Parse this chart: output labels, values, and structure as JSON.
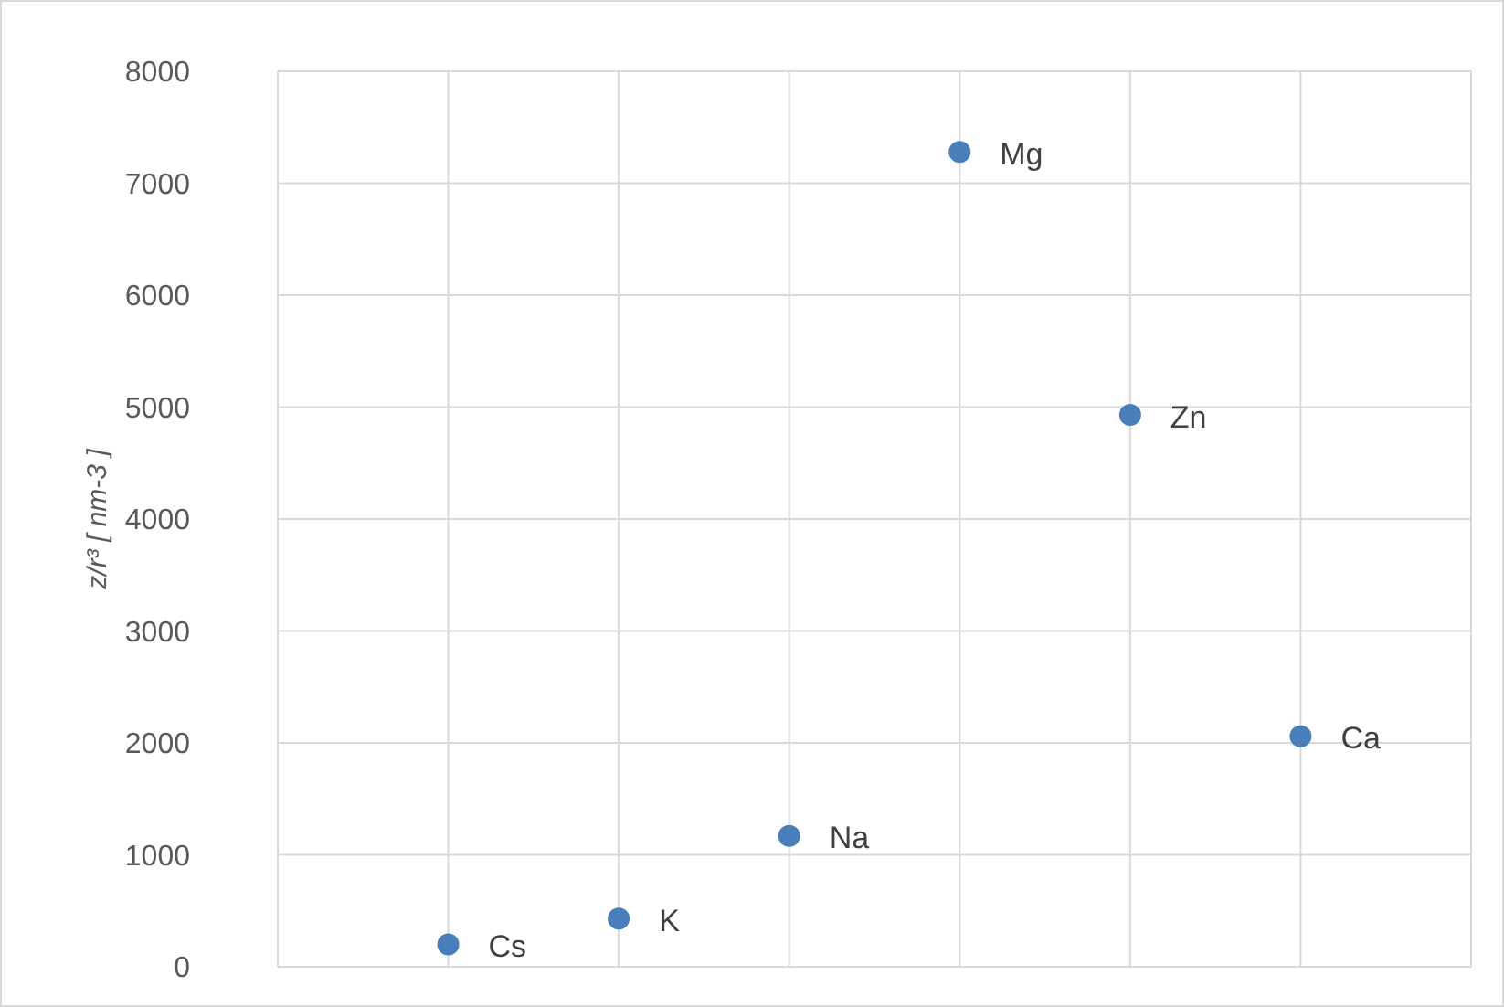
{
  "chart_data": {
    "type": "scatter",
    "ylabel": "z/r³ [ nm-3 ]",
    "categories": [
      null,
      null,
      null,
      null,
      null,
      null
    ],
    "series": [
      {
        "color": "#4a7ebb",
        "values": [
          200,
          430,
          1170,
          7280,
          4930,
          2060
        ]
      }
    ],
    "ylim": [
      0,
      8000
    ],
    "yticks": [
      0,
      1000,
      2000,
      3000,
      4000,
      5000,
      6000,
      7000,
      8000
    ],
    "grid": true,
    "tick_labels": "y",
    "marker": "circle",
    "annotations": [
      "Cs",
      "K",
      "Na",
      "Mg",
      "Zn",
      "Ca"
    ]
  }
}
